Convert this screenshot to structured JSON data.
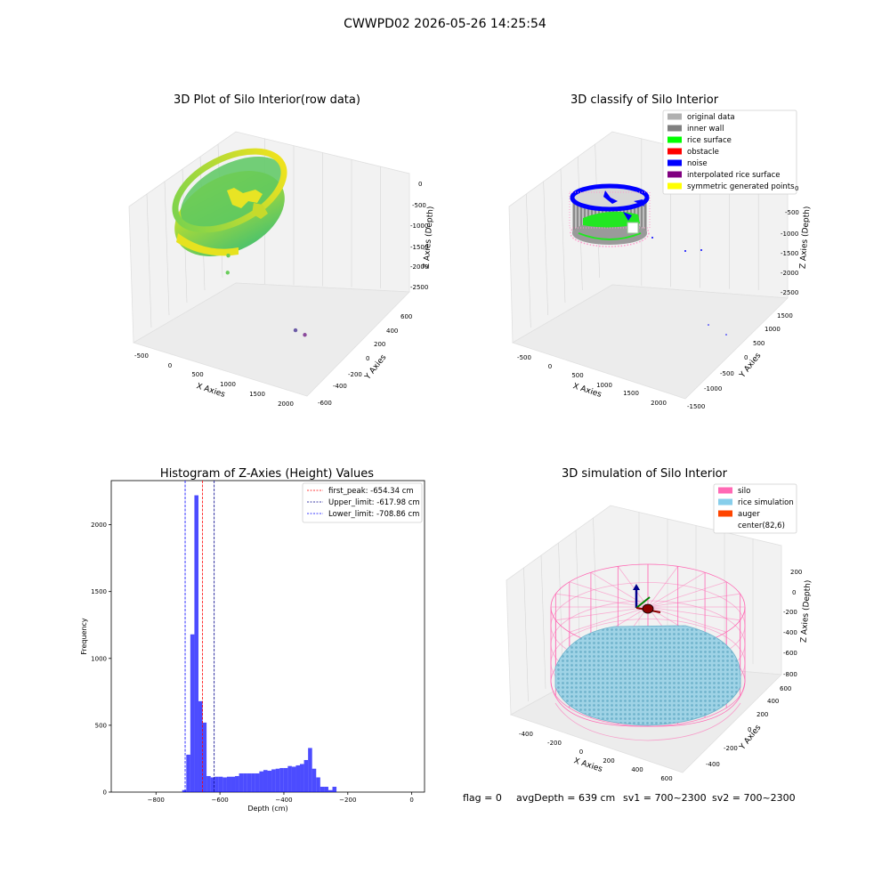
{
  "suptitle": "CWWPD02 2026-05-26 14:25:54",
  "footer": {
    "flag": "flag = 0",
    "avg_depth": "avgDepth = 639 cm",
    "sv1": "sv1 = 700~2300",
    "sv2": "sv2 = 700~2300"
  },
  "chart_data": [
    {
      "type": "scatter",
      "title": "3D Plot of Silo Interior(row data)",
      "xlabel": "X Axies",
      "ylabel": "Y Axies",
      "zlabel": "Z Axies (Depth)",
      "x_ticks": [
        "-500",
        "0",
        "500",
        "1000",
        "1500",
        "2000"
      ],
      "y_ticks": [
        "-600",
        "-400",
        "-200",
        "0",
        "200",
        "400",
        "600"
      ],
      "z_ticks": [
        "0",
        "-500",
        "-1000",
        "-1500",
        "-2000",
        "-2500"
      ],
      "colormap": [
        "#fde725",
        "#5ec962",
        "#8b4a9c"
      ],
      "outliers_xyz": [
        [
          1100,
          100,
          -1050
        ],
        [
          1050,
          50,
          -1550
        ],
        [
          1800,
          -500,
          -2450
        ],
        [
          2000,
          -450,
          -2500
        ]
      ]
    },
    {
      "type": "scatter",
      "title": "3D classify of Silo Interior",
      "xlabel": "X Axies",
      "ylabel": "Y Axies",
      "zlabel": "Z Axies (Depth)",
      "x_ticks": [
        "-500",
        "0",
        "500",
        "1000",
        "1500",
        "2000"
      ],
      "y_ticks": [
        "-1500",
        "-1000",
        "-500",
        "0",
        "500",
        "1000",
        "1500"
      ],
      "z_ticks": [
        "0",
        "-500",
        "-1000",
        "-1500",
        "-2000",
        "-2500"
      ],
      "legend": [
        {
          "label": "original data",
          "color": "#b0b0b0"
        },
        {
          "label": "inner wall",
          "color": "#808080"
        },
        {
          "label": "rice surface",
          "color": "#00ff00"
        },
        {
          "label": "obstacle",
          "color": "#ff0000"
        },
        {
          "label": "noise",
          "color": "#0000ff"
        },
        {
          "label": "interpolated rice surface",
          "color": "#800080"
        },
        {
          "label": "symmetric generated points",
          "color": "#ffff00"
        }
      ],
      "legend_position": "top-right"
    },
    {
      "type": "bar",
      "title": "Histogram of Z-Axies (Height) Values",
      "xlabel": "Depth (cm)",
      "ylabel": "Frequency",
      "xlim": [
        -940,
        40
      ],
      "ylim": [
        0,
        2330
      ],
      "x_ticks": [
        -800,
        -600,
        -400,
        -200,
        0
      ],
      "y_ticks": [
        0,
        500,
        1000,
        1500,
        2000
      ],
      "bin_width": 12.7,
      "bin_start": -718,
      "values": [
        15,
        280,
        1180,
        2220,
        680,
        520,
        120,
        110,
        115,
        115,
        110,
        115,
        115,
        120,
        140,
        140,
        140,
        140,
        140,
        155,
        165,
        160,
        170,
        175,
        180,
        180,
        195,
        190,
        200,
        210,
        240,
        330,
        175,
        110,
        40,
        40,
        15,
        40
      ],
      "bar_color": "#0000ff",
      "bar_alpha": 0.7,
      "vlines": [
        {
          "label": "first_peak: -654.34 cm",
          "x": -654.34,
          "color": "#ff0000"
        },
        {
          "label": "Upper_limit: -617.98 cm",
          "x": -617.98,
          "color": "#00008b"
        },
        {
          "label": "Lower_limit: -708.86 cm",
          "x": -708.86,
          "color": "#0000ff"
        }
      ],
      "legend_position": "top-right"
    },
    {
      "type": "scatter",
      "title": "3D simulation of Silo Interior",
      "xlabel": "X Axies",
      "ylabel": "Y Axies",
      "zlabel": "Z Axies (Depth)",
      "x_ticks": [
        "-400",
        "-200",
        "0",
        "200",
        "400",
        "600"
      ],
      "y_ticks": [
        "-400",
        "-200",
        "0",
        "200",
        "400",
        "600"
      ],
      "z_ticks": [
        "200",
        "0",
        "-200",
        "-400",
        "-600",
        "-800"
      ],
      "legend": [
        {
          "label": "silo",
          "color": "#ff69b4"
        },
        {
          "label": "rice simulation",
          "color": "#87ceeb"
        },
        {
          "label": "auger",
          "color": "#ff4500"
        },
        {
          "label": "center(82,6)",
          "color": ""
        }
      ],
      "legend_position": "top-right"
    }
  ]
}
